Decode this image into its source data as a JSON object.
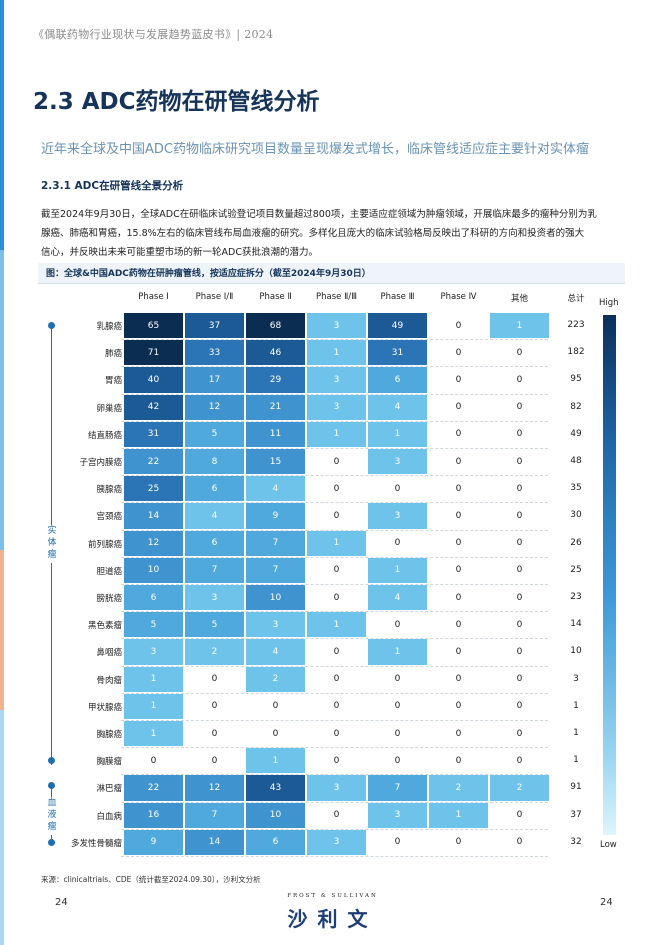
{
  "header": {
    "text": "《偶联药物行业现状与发展趋势蓝皮书》| 2024"
  },
  "title": "2.3 ADC药物在研管线分析",
  "subtitle": "近年来全球及中国ADC药物临床研究项目数量呈现爆发式增长，临床管线适应症主要针对实体瘤",
  "section": "2.3.1 ADC在研管线全景分析",
  "paragraph": {
    "line1": "截至2024年9月30日，全球ADC在研临床试验登记项目数量超过800项，主要适应症领域为肿瘤领域，开展临床最多的瘤种分别为乳",
    "line2": "腺癌、肺癌和胃癌，15.8%左右的临床管线布局血液瘤的研究。多样化且庞大的临床试验格局反映出了科研的方向和投资者的强大",
    "line3": "信心，并反映出未来可能重塑市场的新一轮ADC获批浪潮的潜力。"
  },
  "figure_caption": "图：全球&中国ADC药物在研肿瘤管线，按适应症拆分（截至2024年9月30日）",
  "columns": [
    "Phase Ⅰ",
    "Phase Ⅰ/Ⅱ",
    "Phase Ⅱ",
    "Phase Ⅱ/Ⅲ",
    "Phase Ⅲ",
    "Phase Ⅳ",
    "其他"
  ],
  "total_label": "总计",
  "legend": {
    "high": "High",
    "low": "Low"
  },
  "groups": {
    "solid": "实体瘤",
    "blood": "血液瘤"
  },
  "chart_data": {
    "type": "heatmap",
    "rows": [
      {
        "label": "乳腺癌",
        "values": [
          65,
          37,
          68,
          3,
          49,
          0,
          1
        ],
        "total": 223
      },
      {
        "label": "肺癌",
        "values": [
          71,
          33,
          46,
          1,
          31,
          0,
          0
        ],
        "total": 182
      },
      {
        "label": "胃癌",
        "values": [
          40,
          17,
          29,
          3,
          6,
          0,
          0
        ],
        "total": 95
      },
      {
        "label": "卵巢癌",
        "values": [
          42,
          12,
          21,
          3,
          4,
          0,
          0
        ],
        "total": 82
      },
      {
        "label": "结直肠癌",
        "values": [
          31,
          5,
          11,
          1,
          1,
          0,
          0
        ],
        "total": 49
      },
      {
        "label": "子宫内膜癌",
        "values": [
          22,
          8,
          15,
          0,
          3,
          0,
          0
        ],
        "total": 48
      },
      {
        "label": "胰腺癌",
        "values": [
          25,
          6,
          4,
          0,
          0,
          0,
          0
        ],
        "total": 35
      },
      {
        "label": "宫颈癌",
        "values": [
          14,
          4,
          9,
          0,
          3,
          0,
          0
        ],
        "total": 30
      },
      {
        "label": "前列腺癌",
        "values": [
          12,
          6,
          7,
          1,
          0,
          0,
          0
        ],
        "total": 26
      },
      {
        "label": "胆道癌",
        "values": [
          10,
          7,
          7,
          0,
          1,
          0,
          0
        ],
        "total": 25
      },
      {
        "label": "膀胱癌",
        "values": [
          6,
          3,
          10,
          0,
          4,
          0,
          0
        ],
        "total": 23
      },
      {
        "label": "黑色素瘤",
        "values": [
          5,
          5,
          3,
          1,
          0,
          0,
          0
        ],
        "total": 14
      },
      {
        "label": "鼻咽癌",
        "values": [
          3,
          2,
          4,
          0,
          1,
          0,
          0
        ],
        "total": 10
      },
      {
        "label": "骨肉瘤",
        "values": [
          1,
          0,
          2,
          0,
          0,
          0,
          0
        ],
        "total": 3
      },
      {
        "label": "甲状腺癌",
        "values": [
          1,
          0,
          0,
          0,
          0,
          0,
          0
        ],
        "total": 1
      },
      {
        "label": "胸腺癌",
        "values": [
          1,
          0,
          0,
          0,
          0,
          0,
          0
        ],
        "total": 1
      },
      {
        "label": "胸膜瘤",
        "values": [
          0,
          0,
          1,
          0,
          0,
          0,
          0
        ],
        "total": 1
      },
      {
        "label": "淋巴瘤",
        "values": [
          22,
          12,
          43,
          3,
          7,
          2,
          2
        ],
        "total": 91
      },
      {
        "label": "白血病",
        "values": [
          16,
          7,
          10,
          0,
          3,
          1,
          0
        ],
        "total": 37
      },
      {
        "label": "多发性骨髓瘤",
        "values": [
          9,
          14,
          6,
          3,
          0,
          0,
          0
        ],
        "total": 32
      }
    ]
  },
  "source": "来源：clinicaltrials、CDE（统计截至2024.09.30），沙利文分析",
  "page_left": "24",
  "page_right": "24",
  "brand": {
    "small": "FROST & SULLIVAN",
    "big": "沙利文"
  }
}
